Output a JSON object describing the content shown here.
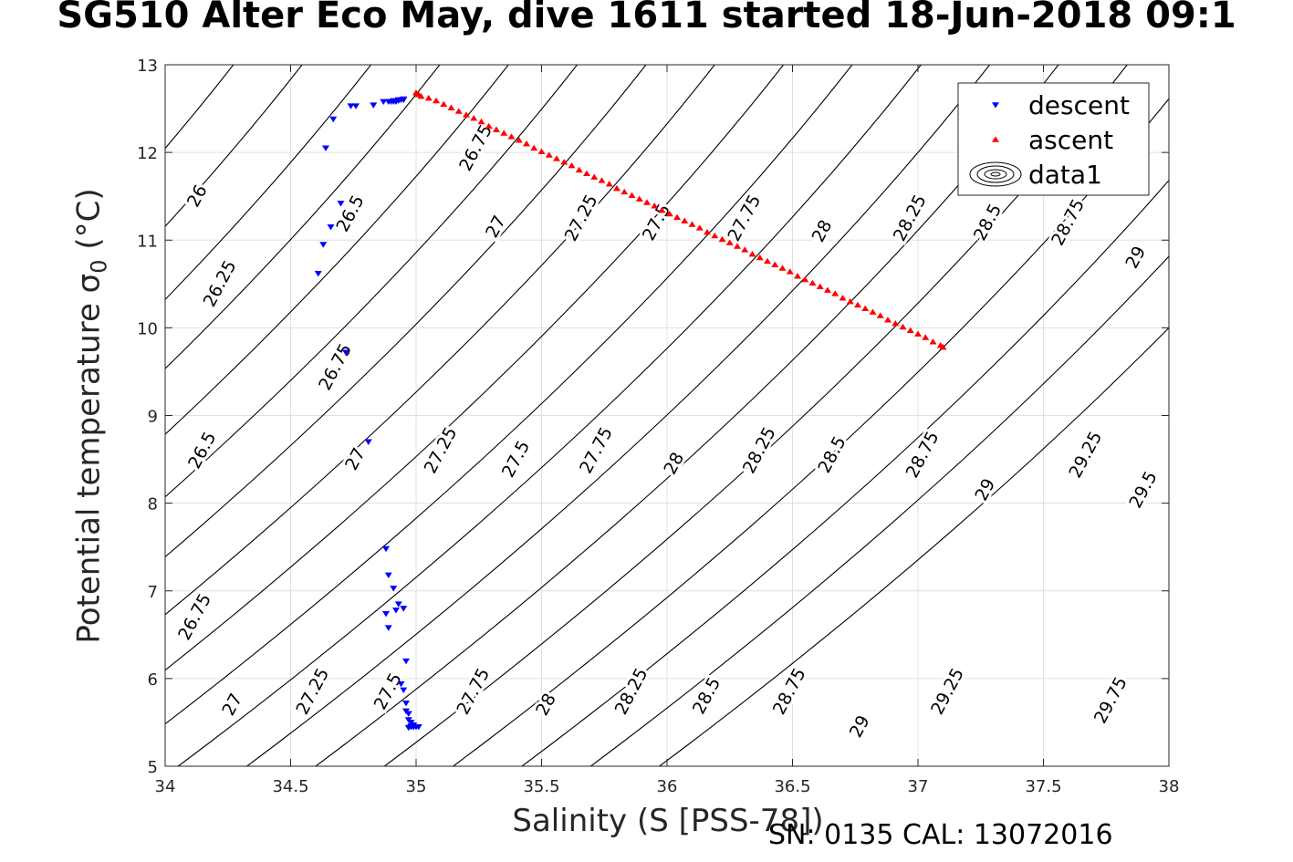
{
  "colors": {
    "descent": "#0000ff",
    "ascent": "#ff0000",
    "contour": "#000000",
    "grid": "#e0e0e0",
    "axis": "#262626"
  },
  "footer_text": "SN: 0135  CAL: 13072016",
  "chart_data": {
    "type": "scatter",
    "title": "SG510 Alter Eco May, dive 1611 started 18-Jun-2018 09:1",
    "xlabel": "Salinity (S [PSS-78])",
    "ylabel": "Potential temperature σ",
    "ylabel_subscript": "0",
    "ylabel_units": "(°C)",
    "xlim": [
      34,
      38
    ],
    "ylim": [
      5,
      13
    ],
    "xticks": [
      34,
      34.5,
      35,
      35.5,
      36,
      36.5,
      37,
      37.5,
      38
    ],
    "xtick_labels": [
      "34",
      "34.5",
      "35",
      "35.5",
      "36",
      "36.5",
      "37",
      "37.5",
      "38"
    ],
    "yticks": [
      5,
      6,
      7,
      8,
      9,
      10,
      11,
      12,
      13
    ],
    "ytick_labels": [
      "5",
      "6",
      "7",
      "8",
      "9",
      "10",
      "11",
      "12",
      "13"
    ],
    "grid": true,
    "legend": {
      "placement": "top-right",
      "entries": [
        "descent",
        "ascent",
        "data1"
      ]
    },
    "series": [
      {
        "name": "descent",
        "marker": "triangle-down",
        "x": [
          34.61,
          34.63,
          34.64,
          34.66,
          34.67,
          34.7,
          34.72,
          34.74,
          34.76,
          34.81,
          34.83,
          34.87,
          34.89,
          34.9,
          34.91,
          34.92,
          34.91,
          34.88,
          34.93,
          34.93,
          34.94,
          34.95,
          34.95,
          34.95,
          34.96,
          34.97,
          34.98,
          34.99,
          35.0,
          35.01,
          34.98,
          34.99,
          34.98,
          34.97,
          34.98,
          34.99,
          34.92,
          34.95,
          34.96,
          34.94,
          34.97,
          34.96,
          34.89,
          34.91,
          34.93,
          34.89,
          34.88
        ],
        "y": [
          10.62,
          10.95,
          12.05,
          11.15,
          12.38,
          11.42,
          9.72,
          12.53,
          12.53,
          8.7,
          12.54,
          12.58,
          12.58,
          12.58,
          12.58,
          12.58,
          12.59,
          7.48,
          12.59,
          12.6,
          12.6,
          12.6,
          12.61,
          5.87,
          5.72,
          5.6,
          5.5,
          5.45,
          5.45,
          5.45,
          5.45,
          5.47,
          5.46,
          5.44,
          5.45,
          5.45,
          6.78,
          6.8,
          6.2,
          5.94,
          5.53,
          5.63,
          7.18,
          7.03,
          6.85,
          6.58,
          6.74
        ]
      },
      {
        "name": "ascent",
        "marker": "triangle-up",
        "x": [
          35.0,
          35.01,
          35.02,
          35.05,
          35.08,
          35.11,
          35.14,
          35.17,
          35.2,
          35.23,
          35.26,
          35.29,
          35.32,
          35.35,
          35.38,
          35.41,
          35.44,
          35.47,
          35.5,
          35.53,
          35.56,
          35.59,
          35.62,
          35.65,
          35.68,
          35.71,
          35.74,
          35.77,
          35.8,
          35.83,
          35.86,
          35.89,
          35.92,
          35.95,
          35.98,
          36.01,
          36.04,
          36.07,
          36.1,
          36.13,
          36.16,
          36.19,
          36.22,
          36.25,
          36.28,
          36.31,
          36.34,
          36.37,
          36.4,
          36.43,
          36.46,
          36.49,
          36.52,
          36.55,
          36.58,
          36.61,
          36.64,
          36.67,
          36.7,
          36.73,
          36.76,
          36.79,
          36.82,
          36.85,
          36.88,
          36.91,
          36.94,
          36.97,
          37.0,
          37.03,
          37.06,
          37.09,
          37.1
        ],
        "y": [
          12.68,
          12.66,
          12.64,
          12.62,
          12.59,
          12.55,
          12.51,
          12.47,
          12.43,
          12.39,
          12.35,
          12.3,
          12.26,
          12.22,
          12.18,
          12.14,
          12.1,
          12.05,
          12.01,
          11.97,
          11.93,
          11.89,
          11.85,
          11.8,
          11.76,
          11.72,
          11.68,
          11.64,
          11.59,
          11.55,
          11.51,
          11.47,
          11.43,
          11.39,
          11.34,
          11.3,
          11.26,
          11.22,
          11.18,
          11.14,
          11.09,
          11.05,
          11.01,
          10.97,
          10.93,
          10.89,
          10.84,
          10.8,
          10.76,
          10.72,
          10.68,
          10.64,
          10.59,
          10.55,
          10.51,
          10.47,
          10.43,
          10.39,
          10.34,
          10.3,
          10.26,
          10.22,
          10.18,
          10.14,
          10.09,
          10.05,
          10.01,
          9.97,
          9.93,
          9.89,
          9.84,
          9.8,
          9.78
        ]
      }
    ],
    "contours": {
      "name": "data1",
      "levels": [
        26,
        26.25,
        26.5,
        26.75,
        27,
        27.25,
        27.5,
        27.75,
        28,
        28.25,
        28.5,
        28.75,
        29,
        29.25,
        29.5,
        29.75
      ],
      "level_labels": [
        "26",
        "26.25",
        "26.5",
        "26.75",
        "27",
        "27.25",
        "27.5",
        "27.75",
        "28",
        "28.25",
        "28.5",
        "28.75",
        "29",
        "29.25",
        "29.5",
        "29.75"
      ],
      "label_positions": [
        {
          "level": 26,
          "x": 34.13,
          "y": 11.5
        },
        {
          "level": 26.25,
          "x": 34.22,
          "y": 10.5
        },
        {
          "level": 26.5,
          "x": 34.74,
          "y": 11.3
        },
        {
          "level": 26.75,
          "x": 35.24,
          "y": 12.05
        },
        {
          "level": 26.5,
          "x": 34.15,
          "y": 8.6
        },
        {
          "level": 26.75,
          "x": 34.68,
          "y": 9.55
        },
        {
          "level": 27,
          "x": 35.32,
          "y": 11.15
        },
        {
          "level": 27.25,
          "x": 35.66,
          "y": 11.25
        },
        {
          "level": 27.5,
          "x": 35.96,
          "y": 11.2
        },
        {
          "level": 27.75,
          "x": 36.31,
          "y": 11.25
        },
        {
          "level": 28,
          "x": 36.62,
          "y": 11.1
        },
        {
          "level": 28.25,
          "x": 36.97,
          "y": 11.25
        },
        {
          "level": 28.5,
          "x": 37.28,
          "y": 11.2
        },
        {
          "level": 28.75,
          "x": 37.6,
          "y": 11.2
        },
        {
          "level": 29,
          "x": 37.87,
          "y": 10.8
        },
        {
          "level": 26.75,
          "x": 34.12,
          "y": 6.7
        },
        {
          "level": 27,
          "x": 34.76,
          "y": 8.5
        },
        {
          "level": 27.25,
          "x": 35.1,
          "y": 8.6
        },
        {
          "level": 27.5,
          "x": 35.4,
          "y": 8.5
        },
        {
          "level": 27.75,
          "x": 35.72,
          "y": 8.6
        },
        {
          "level": 28,
          "x": 36.03,
          "y": 8.45
        },
        {
          "level": 28.25,
          "x": 36.37,
          "y": 8.6
        },
        {
          "level": 28.5,
          "x": 36.66,
          "y": 8.55
        },
        {
          "level": 28.75,
          "x": 37.02,
          "y": 8.55
        },
        {
          "level": 29,
          "x": 37.27,
          "y": 8.15
        },
        {
          "level": 29.25,
          "x": 37.67,
          "y": 8.55
        },
        {
          "level": 29.5,
          "x": 37.9,
          "y": 8.15
        },
        {
          "level": 27,
          "x": 34.27,
          "y": 5.7
        },
        {
          "level": 27.25,
          "x": 34.59,
          "y": 5.85
        },
        {
          "level": 27.5,
          "x": 34.89,
          "y": 5.85
        },
        {
          "level": 27.75,
          "x": 35.23,
          "y": 5.85
        },
        {
          "level": 28,
          "x": 35.52,
          "y": 5.7
        },
        {
          "level": 28.25,
          "x": 35.86,
          "y": 5.85
        },
        {
          "level": 28.5,
          "x": 36.16,
          "y": 5.8
        },
        {
          "level": 28.75,
          "x": 36.49,
          "y": 5.85
        },
        {
          "level": 29,
          "x": 36.77,
          "y": 5.45
        },
        {
          "level": 29.25,
          "x": 37.12,
          "y": 5.85
        },
        {
          "level": 29.75,
          "x": 37.77,
          "y": 5.75
        }
      ]
    }
  }
}
